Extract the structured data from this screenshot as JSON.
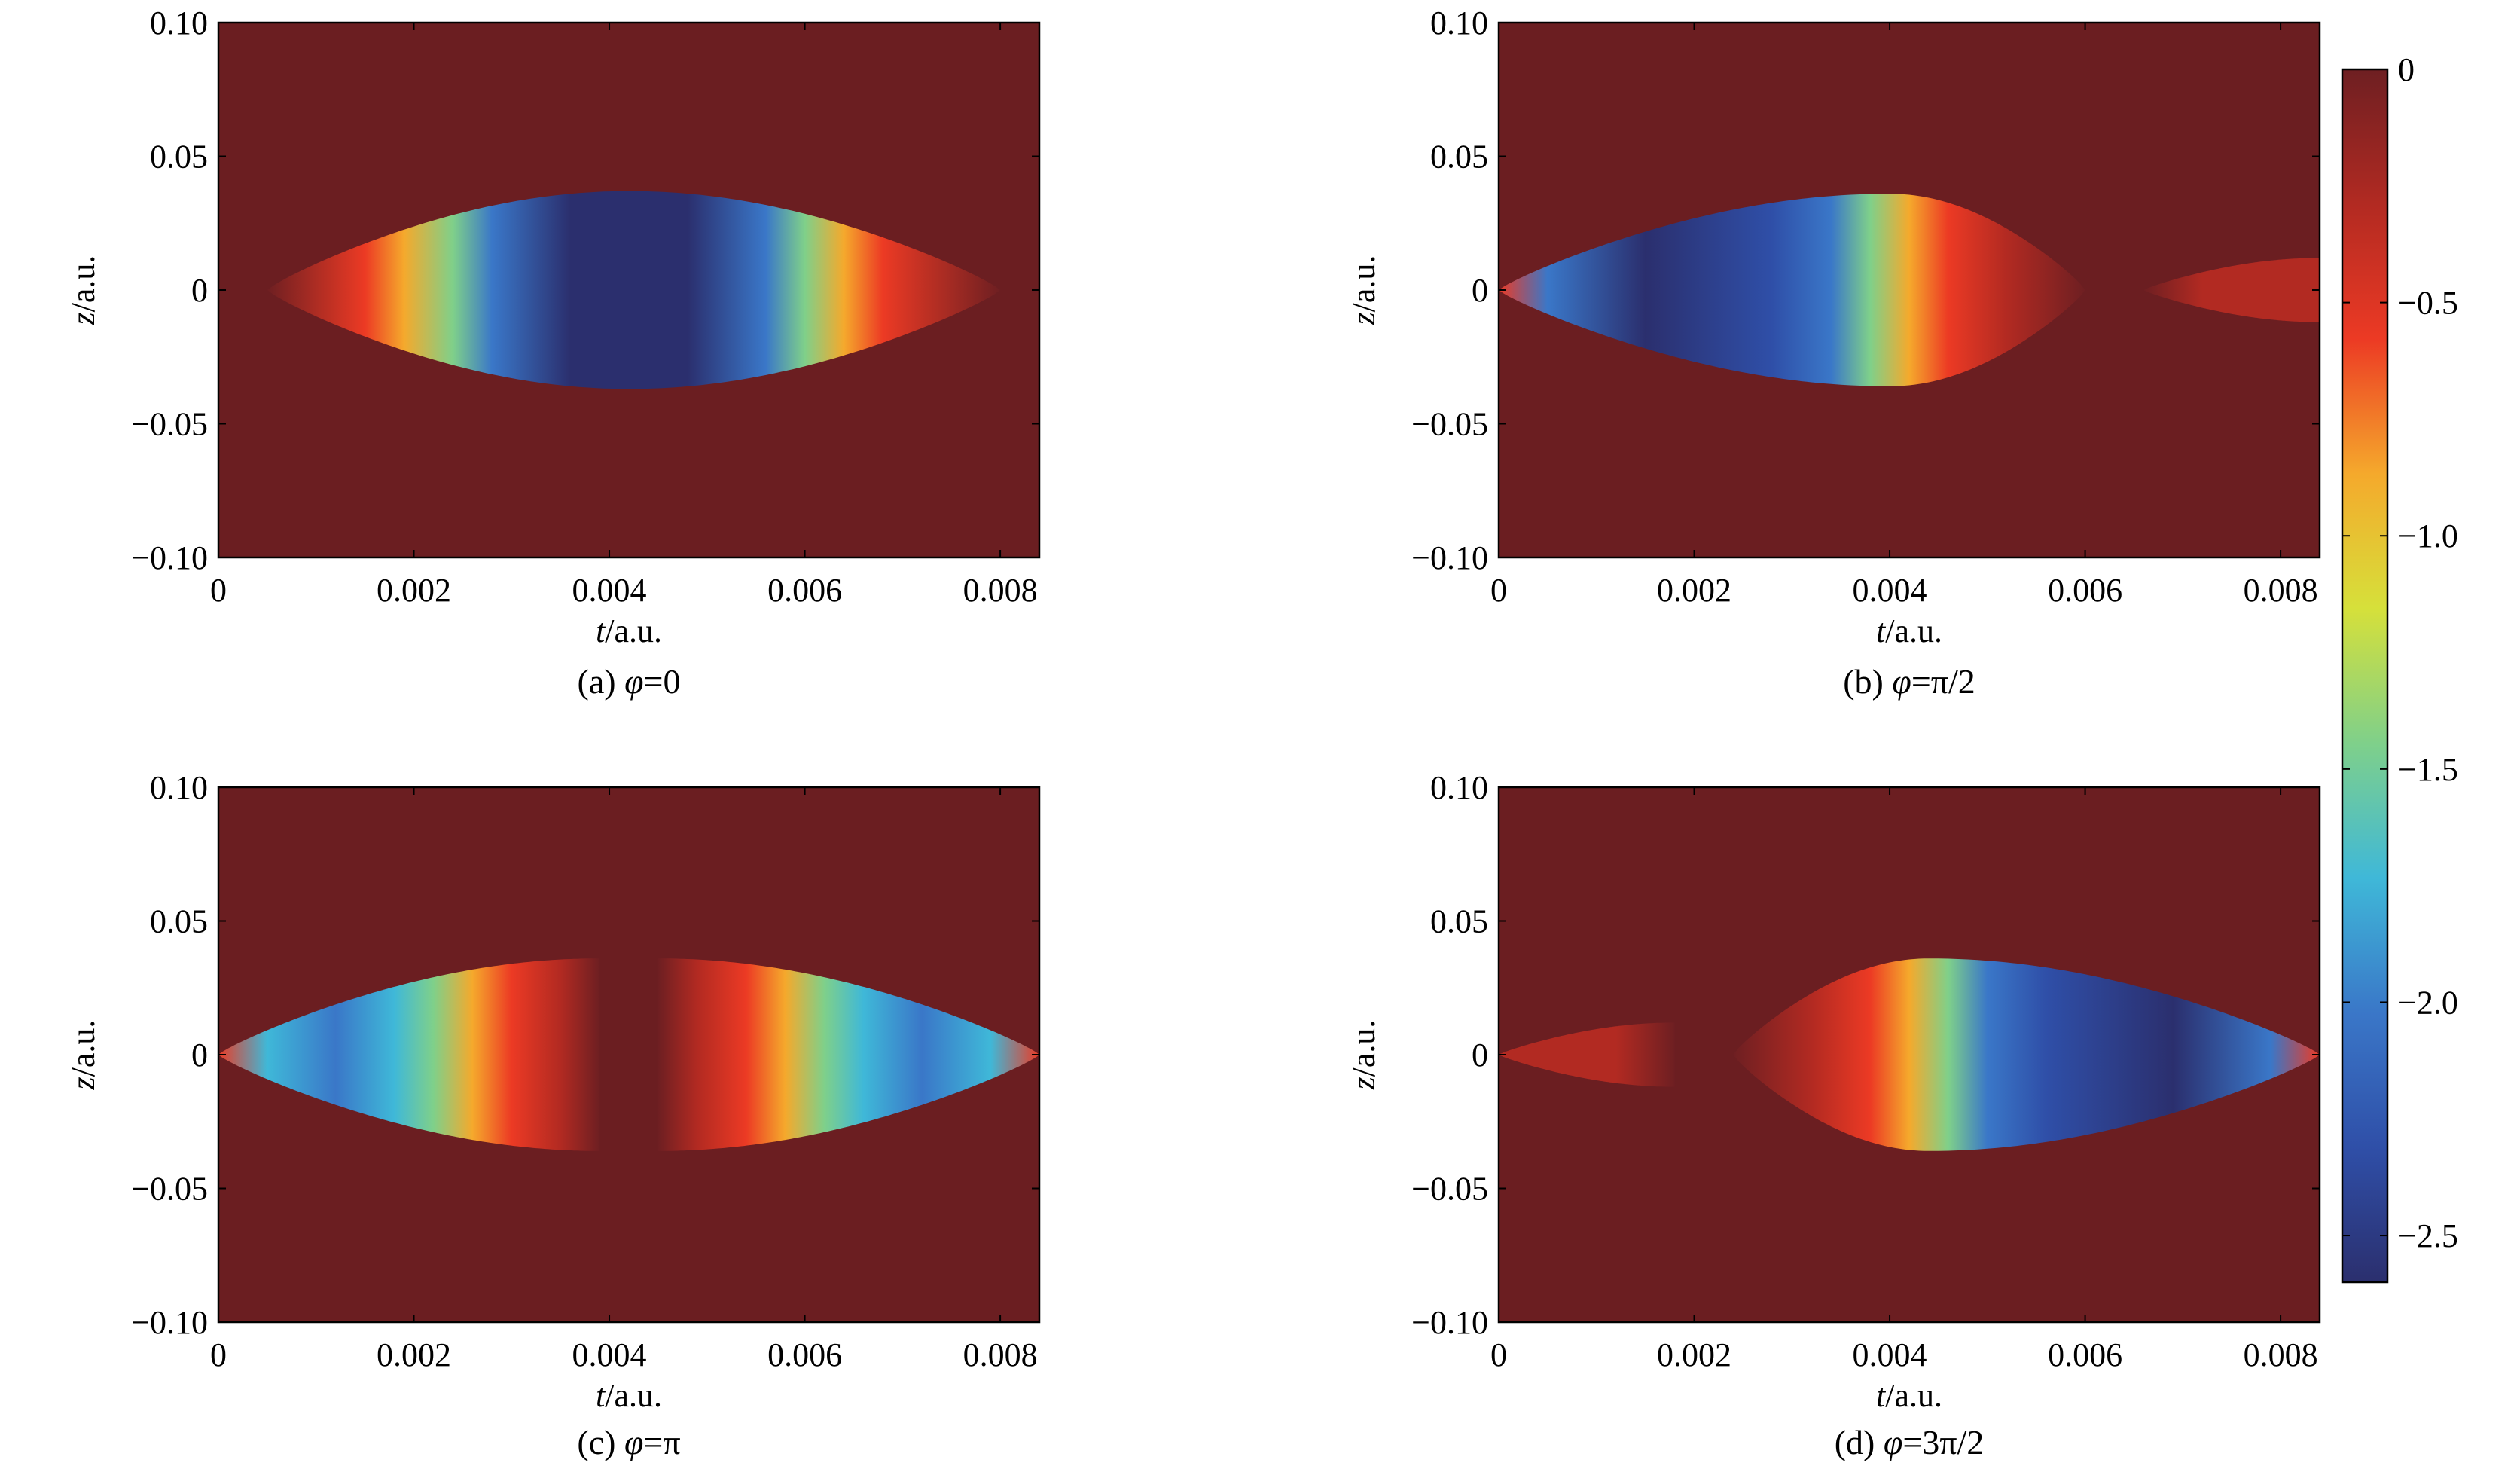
{
  "chart_data": [
    {
      "type": "heatmap",
      "caption_prefix": "(a) ",
      "caption_symbol": "φ",
      "caption_value": "=0",
      "xlabel_var": "t",
      "xlabel_unit": "/a.u.",
      "ylabel_var": "z",
      "ylabel_unit": "/a.u.",
      "xlim": [
        0,
        0.0084
      ],
      "ylim": [
        -0.1,
        0.1
      ],
      "xticks": [
        "0",
        "0.002",
        "0.004",
        "0.006",
        "0.008"
      ],
      "yticks": [
        "0.10",
        "0.05",
        "0",
        "−0.05",
        "−0.10"
      ],
      "lobes": [
        {
          "t_start": 0.0005,
          "t_end": 0.008,
          "t_peak": 0.0042,
          "half_width": 0.037,
          "profile": [
            [
              0.0005,
              0
            ],
            [
              0.0015,
              -0.5
            ],
            [
              0.0019,
              -1.0
            ],
            [
              0.0024,
              -1.5
            ],
            [
              0.0028,
              -2.1
            ],
            [
              0.0036,
              -2.5
            ],
            [
              0.0042,
              -2.6
            ],
            [
              0.0048,
              -2.5
            ],
            [
              0.0056,
              -2.1
            ],
            [
              0.006,
              -1.5
            ],
            [
              0.0064,
              -1.0
            ],
            [
              0.0068,
              -0.5
            ],
            [
              0.008,
              0
            ]
          ]
        }
      ]
    },
    {
      "type": "heatmap",
      "caption_prefix": "(b) ",
      "caption_symbol": "φ",
      "caption_value": "=π/2",
      "xlabel_var": "t",
      "xlabel_unit": "/a.u.",
      "ylabel_var": "z",
      "ylabel_unit": "/a.u.",
      "xlim": [
        0,
        0.0084
      ],
      "ylim": [
        -0.1,
        0.1
      ],
      "xticks": [
        "0",
        "0.002",
        "0.004",
        "0.006",
        "0.008"
      ],
      "yticks": [
        "0.10",
        "0.05",
        "0",
        "−0.05",
        "−0.10"
      ],
      "lobes": [
        {
          "t_start": 0.0,
          "t_end": 0.006,
          "t_peak": 0.004,
          "half_width": 0.036,
          "profile": [
            [
              0.0,
              -0.5
            ],
            [
              0.0005,
              -2.0
            ],
            [
              0.0015,
              -2.5
            ],
            [
              0.0028,
              -2.2
            ],
            [
              0.0034,
              -1.9
            ],
            [
              0.0038,
              -1.4
            ],
            [
              0.0042,
              -1.0
            ],
            [
              0.0046,
              -0.6
            ],
            [
              0.0052,
              -0.3
            ],
            [
              0.006,
              0
            ]
          ]
        },
        {
          "t_start": 0.0066,
          "t_end": 0.0084,
          "t_peak": 0.0084,
          "half_width": 0.012,
          "profile": [
            [
              0.0066,
              0
            ],
            [
              0.0072,
              -0.35
            ],
            [
              0.0084,
              -0.4
            ]
          ]
        }
      ]
    },
    {
      "type": "heatmap",
      "caption_prefix": "(c) ",
      "caption_symbol": "φ",
      "caption_value": "=π",
      "xlabel_var": "t",
      "xlabel_unit": "/a.u.",
      "ylabel_var": "z",
      "ylabel_unit": "/a.u.",
      "xlim": [
        0,
        0.0084
      ],
      "ylim": [
        -0.1,
        0.1
      ],
      "xticks": [
        "0",
        "0.002",
        "0.004",
        "0.006",
        "0.008"
      ],
      "yticks": [
        "0.10",
        "0.05",
        "0",
        "−0.05",
        "−0.10"
      ],
      "lobes": [
        {
          "t_start": 0.0,
          "t_end": 0.0039,
          "t_peak": 0.0039,
          "half_width": 0.036,
          "profile": [
            [
              0.0,
              -0.5
            ],
            [
              0.0005,
              -1.8
            ],
            [
              0.0012,
              -2.1
            ],
            [
              0.0018,
              -1.8
            ],
            [
              0.0022,
              -1.4
            ],
            [
              0.0026,
              -1.0
            ],
            [
              0.003,
              -0.5
            ],
            [
              0.0035,
              -0.2
            ],
            [
              0.0039,
              0
            ]
          ]
        },
        {
          "t_start": 0.0045,
          "t_end": 0.0084,
          "t_peak": 0.0045,
          "half_width": 0.036,
          "profile": [
            [
              0.0045,
              0
            ],
            [
              0.0049,
              -0.2
            ],
            [
              0.0054,
              -0.5
            ],
            [
              0.0058,
              -1.0
            ],
            [
              0.0062,
              -1.4
            ],
            [
              0.0066,
              -1.8
            ],
            [
              0.0072,
              -2.1
            ],
            [
              0.0079,
              -1.8
            ],
            [
              0.0084,
              -0.5
            ]
          ]
        }
      ]
    },
    {
      "type": "heatmap",
      "caption_prefix": "(d) ",
      "caption_symbol": "φ",
      "caption_value": "=3π/2",
      "xlabel_var": "t",
      "xlabel_unit": "/a.u.",
      "ylabel_var": "z",
      "ylabel_unit": "/a.u.",
      "xlim": [
        0,
        0.0084
      ],
      "ylim": [
        -0.1,
        0.1
      ],
      "xticks": [
        "0",
        "0.002",
        "0.004",
        "0.006",
        "0.008"
      ],
      "yticks": [
        "0.10",
        "0.05",
        "0",
        "−0.05",
        "−0.10"
      ],
      "lobes": [
        {
          "t_start": 0.0,
          "t_end": 0.0018,
          "t_peak": 0.0018,
          "half_width": 0.012,
          "profile": [
            [
              0.0,
              -0.4
            ],
            [
              0.0012,
              -0.35
            ],
            [
              0.0018,
              0
            ]
          ]
        },
        {
          "t_start": 0.0024,
          "t_end": 0.0084,
          "t_peak": 0.0044,
          "half_width": 0.036,
          "profile": [
            [
              0.0024,
              0
            ],
            [
              0.0032,
              -0.3
            ],
            [
              0.0038,
              -0.6
            ],
            [
              0.0042,
              -1.0
            ],
            [
              0.0046,
              -1.4
            ],
            [
              0.005,
              -1.9
            ],
            [
              0.0056,
              -2.2
            ],
            [
              0.0069,
              -2.5
            ],
            [
              0.0079,
              -2.0
            ],
            [
              0.0084,
              -0.5
            ]
          ]
        }
      ]
    }
  ],
  "colorbar": {
    "min": -2.6,
    "max": 0,
    "ticks": [
      {
        "value": 0,
        "label": "0"
      },
      {
        "value": -0.5,
        "label": "−0.5"
      },
      {
        "value": -1.0,
        "label": "−1.0"
      },
      {
        "value": -1.5,
        "label": "−1.5"
      },
      {
        "value": -2.0,
        "label": "−2.0"
      },
      {
        "value": -2.5,
        "label": "−2.5"
      }
    ],
    "colormap": [
      "#2b2f6e",
      "#2f4fa8",
      "#3a77c8",
      "#3fb8d8",
      "#7fd08a",
      "#d6e03a",
      "#f5a92c",
      "#ec3a24",
      "#b22a22",
      "#6e1f22"
    ]
  },
  "background_color": "#6b1e21"
}
